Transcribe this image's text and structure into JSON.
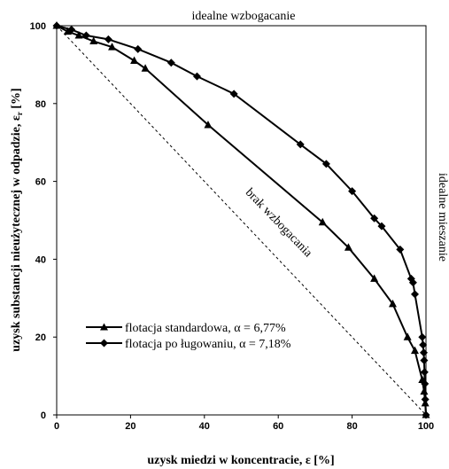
{
  "chart_data": {
    "type": "line",
    "xlabel": "uzysk miedzi w koncentracie, ε [%]",
    "ylabel": "uzysk substancji nieużytecznej w odpadzie, ε",
    "ylabel_sub": "r",
    "ylabel_unit": " [%]",
    "xlim": [
      0,
      100
    ],
    "ylim": [
      0,
      100
    ],
    "xticks": [
      0,
      20,
      40,
      60,
      80,
      100
    ],
    "yticks": [
      0,
      20,
      40,
      60,
      80,
      100
    ],
    "grid": false,
    "legend_position": "bottom-left",
    "annotations": {
      "top": "idealne wzbogacanie",
      "right": "idealne mieszanie",
      "diagonal": "brak wzbogacania"
    },
    "reference_line": {
      "x": [
        0,
        100
      ],
      "y": [
        100,
        0
      ],
      "style": "dashed"
    },
    "series": [
      {
        "name": "flotacja standardowa, α = 6,77%",
        "marker": "triangle",
        "x": [
          0,
          3,
          6,
          10,
          15,
          21,
          24,
          41,
          72,
          79,
          86,
          91,
          95,
          97,
          99,
          99.5,
          99.8,
          100
        ],
        "y": [
          100,
          98.5,
          97.5,
          96,
          94.5,
          91,
          89,
          74.5,
          49.5,
          43,
          35,
          28.5,
          20,
          16.5,
          9,
          6,
          3,
          0
        ]
      },
      {
        "name": "flotacja po ługowaniu, α = 7,18%",
        "marker": "diamond",
        "x": [
          0,
          4,
          8,
          14,
          22,
          31,
          38,
          48,
          66,
          73,
          80,
          86,
          88,
          93,
          96,
          96.5,
          97,
          99,
          99.2,
          99.4,
          99.5,
          99.6,
          99.7,
          99.8,
          100
        ],
        "y": [
          100,
          99,
          97.5,
          96.5,
          94,
          90.5,
          87,
          82.5,
          69.5,
          64.5,
          57.5,
          50.5,
          48.5,
          42.5,
          35,
          34,
          31,
          20,
          18,
          16,
          14,
          11,
          8,
          4,
          0
        ]
      }
    ]
  }
}
